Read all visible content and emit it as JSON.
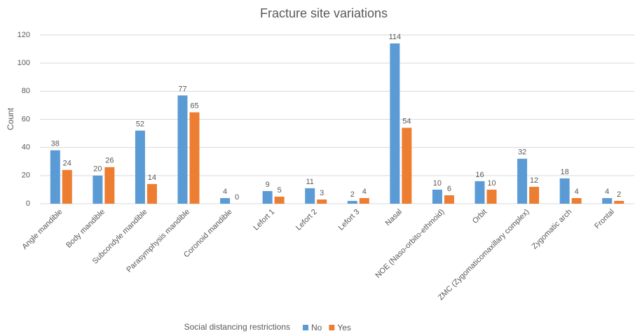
{
  "chart_data": {
    "type": "bar",
    "title": "Fracture site variations",
    "y_label": "Count",
    "categories": [
      "Angle mandible",
      "Body mandible",
      "Subcondyle mandible",
      "Parasymphysis mandible",
      "Coronoid mandible",
      "Lefort 1",
      "Lefort 2",
      "Lefort 3",
      "Nasal",
      "NOE (Naso-orbito-ethmoid)",
      "Orbit",
      "ZMC (Zygomaticomaxillary complex)",
      "Zygomatic arch",
      "Frontal"
    ],
    "series": [
      {
        "name": "No",
        "color": "#5b9bd5",
        "values": [
          38,
          20,
          52,
          77,
          4,
          9,
          11,
          2,
          114,
          10,
          16,
          32,
          18,
          4
        ]
      },
      {
        "name": "Yes",
        "color": "#ed7d31",
        "values": [
          24,
          26,
          14,
          65,
          0,
          5,
          3,
          4,
          54,
          6,
          10,
          12,
          4,
          2
        ]
      }
    ],
    "legend_title": "Social distancing restrictions",
    "legend": "bottom",
    "ylim": [
      0,
      120
    ],
    "yticks": [
      0,
      20,
      40,
      60,
      80,
      100,
      120
    ],
    "grid": true
  }
}
